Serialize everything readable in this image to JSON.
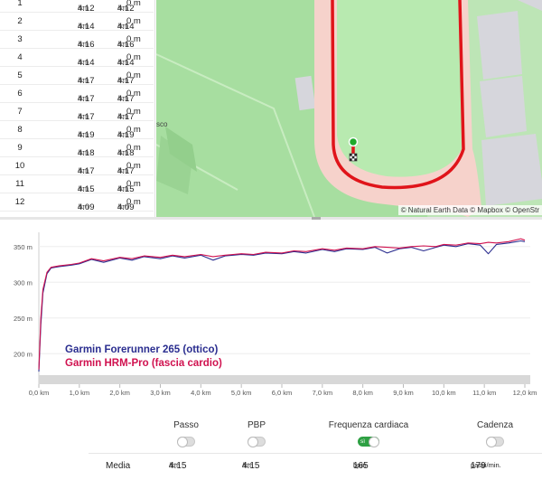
{
  "laps": [
    {
      "num": "1",
      "pace": "4:12",
      "pace_unit": "/km",
      "pace2": "4:12",
      "pace2_unit": "/km",
      "elev": "0 m"
    },
    {
      "num": "2",
      "pace": "4:14",
      "pace_unit": "/km",
      "pace2": "4:14",
      "pace2_unit": "/km",
      "elev": "0 m"
    },
    {
      "num": "3",
      "pace": "4:16",
      "pace_unit": "/km",
      "pace2": "4:16",
      "pace2_unit": "/km",
      "elev": "0 m"
    },
    {
      "num": "4",
      "pace": "4:14",
      "pace_unit": "/km",
      "pace2": "4:14",
      "pace2_unit": "/km",
      "elev": "0 m"
    },
    {
      "num": "5",
      "pace": "4:17",
      "pace_unit": "/km",
      "pace2": "4:17",
      "pace2_unit": "/km",
      "elev": "0 m"
    },
    {
      "num": "6",
      "pace": "4:17",
      "pace_unit": "/km",
      "pace2": "4:17",
      "pace2_unit": "/km",
      "elev": "0 m"
    },
    {
      "num": "7",
      "pace": "4:17",
      "pace_unit": "/km",
      "pace2": "4:17",
      "pace2_unit": "/km",
      "elev": "0 m"
    },
    {
      "num": "8",
      "pace": "4:19",
      "pace_unit": "/km",
      "pace2": "4:19",
      "pace2_unit": "/km",
      "elev": "0 m"
    },
    {
      "num": "9",
      "pace": "4:18",
      "pace_unit": "/km",
      "pace2": "4:18",
      "pace2_unit": "/km",
      "elev": "0 m"
    },
    {
      "num": "10",
      "pace": "4:17",
      "pace_unit": "/km",
      "pace2": "4:17",
      "pace2_unit": "/km",
      "elev": "0 m"
    },
    {
      "num": "11",
      "pace": "4:15",
      "pace_unit": "/km",
      "pace2": "4:15",
      "pace2_unit": "/km",
      "elev": "0 m"
    },
    {
      "num": "12",
      "pace": "4:09",
      "pace_unit": "/km",
      "pace2": "4:09",
      "pace2_unit": "/km",
      "elev": "0 m"
    }
  ],
  "map": {
    "attribution": "© Natural Earth Data © Mapbox © OpenStr",
    "partial_label": "sco",
    "colors": {
      "grass": "#a7dea0",
      "track": "#f6d2cb",
      "field": "#b8eab0",
      "route": "#e0141a",
      "building": "#d6d6dc"
    }
  },
  "chart_data": {
    "type": "line",
    "x_unit": "km",
    "y_unit": "m",
    "xlim": [
      0,
      12
    ],
    "ylim": [
      170,
      370
    ],
    "x_ticks": [
      "0,0 km",
      "1,0 km",
      "2,0 km",
      "3,0 km",
      "4,0 km",
      "5,0 km",
      "6,0 km",
      "7,0 km",
      "8,0 km",
      "9,0 km",
      "10,0 km",
      "11,0 km",
      "12,0 km"
    ],
    "y_ticks": [
      {
        "value": 350,
        "label": "350 m"
      },
      {
        "value": 300,
        "label": "300 m"
      },
      {
        "value": 250,
        "label": "250 m"
      },
      {
        "value": 200,
        "label": "200 m"
      }
    ],
    "series": [
      {
        "name": "Garmin Forerunner 265 (ottico)",
        "color": "#2a2d8f",
        "x": [
          0,
          0.05,
          0.1,
          0.2,
          0.3,
          0.5,
          0.8,
          1.0,
          1.3,
          1.6,
          2.0,
          2.3,
          2.6,
          3.0,
          3.3,
          3.6,
          4.0,
          4.3,
          4.6,
          5.0,
          5.3,
          5.6,
          6.0,
          6.3,
          6.6,
          7.0,
          7.3,
          7.6,
          8.0,
          8.3,
          8.6,
          8.9,
          9.2,
          9.5,
          9.8,
          10.0,
          10.3,
          10.6,
          10.9,
          11.1,
          11.3,
          11.6,
          11.9,
          12.0
        ],
        "y": [
          175,
          240,
          285,
          312,
          320,
          322,
          324,
          326,
          332,
          328,
          334,
          331,
          336,
          333,
          337,
          334,
          338,
          331,
          337,
          339,
          338,
          341,
          340,
          343,
          341,
          346,
          343,
          347,
          346,
          349,
          341,
          347,
          349,
          344,
          349,
          352,
          350,
          354,
          352,
          340,
          353,
          355,
          358,
          357
        ]
      },
      {
        "name": "Garmin HRM-Pro (fascia cardio)",
        "color": "#d0114f",
        "x": [
          0,
          0.05,
          0.1,
          0.2,
          0.3,
          0.5,
          0.8,
          1.0,
          1.3,
          1.6,
          2.0,
          2.3,
          2.6,
          3.0,
          3.3,
          3.6,
          4.0,
          4.3,
          4.6,
          5.0,
          5.3,
          5.6,
          6.0,
          6.3,
          6.6,
          7.0,
          7.3,
          7.6,
          8.0,
          8.3,
          8.6,
          8.9,
          9.2,
          9.5,
          9.8,
          10.0,
          10.3,
          10.6,
          10.9,
          11.1,
          11.3,
          11.6,
          11.9,
          12.0
        ],
        "y": [
          178,
          250,
          290,
          314,
          321,
          323,
          325,
          327,
          333,
          330,
          335,
          333,
          337,
          335,
          338,
          336,
          339,
          336,
          338,
          340,
          339,
          342,
          341,
          344,
          343,
          347,
          345,
          348,
          347,
          350,
          349,
          348,
          350,
          351,
          350,
          353,
          352,
          355,
          354,
          356,
          355,
          357,
          361,
          359
        ]
      }
    ]
  },
  "stats": {
    "toggles": [
      {
        "label": "Passo",
        "state": "off"
      },
      {
        "label": "PBP",
        "state": "off"
      },
      {
        "label": "Frequenza cardiaca",
        "state": "on",
        "on_text": "sì"
      },
      {
        "label": "Cadenza",
        "state": "off"
      }
    ],
    "media_label": "Media",
    "passo_value": "4:15",
    "passo_unit": "/km",
    "pbp_value": "4:15",
    "pbp_unit": "/km",
    "hr_value": "165",
    "hr_unit": "bpm",
    "cadence_value": "179",
    "cadence_unit": "passi/min."
  }
}
